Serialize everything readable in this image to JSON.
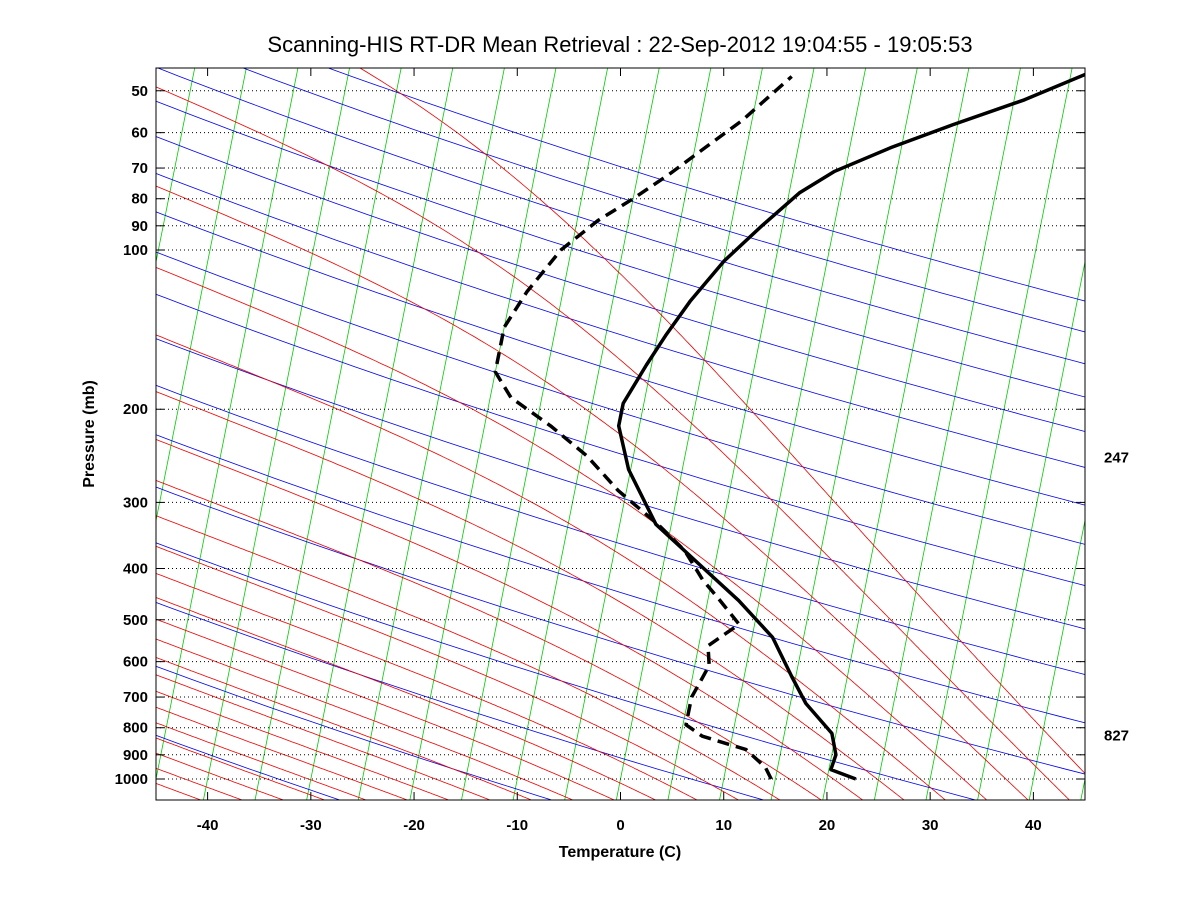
{
  "chart_data": {
    "type": "line",
    "chart_kind": "skew-T log-P sounding",
    "title": "Scanning-HIS RT-DR Mean Retrieval : 22-Sep-2012 19:04:55 - 19:05:53",
    "xlabel": "Temperature (C)",
    "ylabel": "Pressure (mb)",
    "xlim": [
      -45,
      45
    ],
    "ylim": [
      1090,
      45
    ],
    "x_ticks": [
      -40,
      -30,
      -20,
      -10,
      0,
      10,
      20,
      30,
      40
    ],
    "y_ticks": [
      50,
      60,
      70,
      80,
      90,
      100,
      200,
      300,
      400,
      500,
      600,
      700,
      800,
      900,
      1000
    ],
    "right_annotations": [
      {
        "text": "247",
        "pressure": 247
      },
      {
        "text": "827",
        "pressure": 827
      }
    ],
    "grid": "dotted horizontal at pressure ticks",
    "colors": {
      "temperature": "#000000",
      "dewpoint": "#000000",
      "isotherm": "#00cc00",
      "dry_adiabat": "#0000ee",
      "moist_adiabat": "#ee0000",
      "grid": "#000000"
    },
    "series": [
      {
        "name": "temperature",
        "style": "solid",
        "points": [
          [
            22.8,
            1000
          ],
          [
            20.2,
            960
          ],
          [
            20.4,
            900
          ],
          [
            19.6,
            820
          ],
          [
            16.5,
            720
          ],
          [
            14.6,
            640
          ],
          [
            12.0,
            540
          ],
          [
            8.0,
            460
          ],
          [
            4.0,
            400
          ],
          [
            -1.5,
            330
          ],
          [
            -5.2,
            260
          ],
          [
            -7.0,
            215
          ],
          [
            -7.0,
            195
          ],
          [
            -5.5,
            165
          ],
          [
            -4.2,
            145
          ],
          [
            -2.5,
            125
          ],
          [
            0.0,
            105
          ],
          [
            3.0,
            90
          ],
          [
            6.0,
            78
          ],
          [
            9.0,
            71
          ],
          [
            14.0,
            64
          ],
          [
            19.5,
            58
          ],
          [
            26.0,
            52
          ],
          [
            32.0,
            46
          ]
        ]
      },
      {
        "name": "dewpoint",
        "style": "dashed",
        "points": [
          [
            14.6,
            1000
          ],
          [
            13.8,
            950
          ],
          [
            11.6,
            880
          ],
          [
            7.1,
            830
          ],
          [
            5.3,
            790
          ],
          [
            5.3,
            700
          ],
          [
            5.9,
            650
          ],
          [
            6.4,
            610
          ],
          [
            5.9,
            560
          ],
          [
            8.5,
            510
          ],
          [
            6.2,
            460
          ],
          [
            4.1,
            420
          ],
          [
            1.8,
            370
          ],
          [
            -1.3,
            330
          ],
          [
            -5.8,
            285
          ],
          [
            -9.5,
            245
          ],
          [
            -13.6,
            215
          ],
          [
            -18.0,
            190
          ],
          [
            -20.0,
            170
          ],
          [
            -20.0,
            140
          ],
          [
            -18.5,
            120
          ],
          [
            -16.0,
            100
          ],
          [
            -13.0,
            88
          ],
          [
            -10.0,
            80
          ],
          [
            -7.0,
            72
          ],
          [
            -4.0,
            64
          ],
          [
            -1.0,
            57
          ],
          [
            3.0,
            47
          ]
        ]
      }
    ]
  }
}
